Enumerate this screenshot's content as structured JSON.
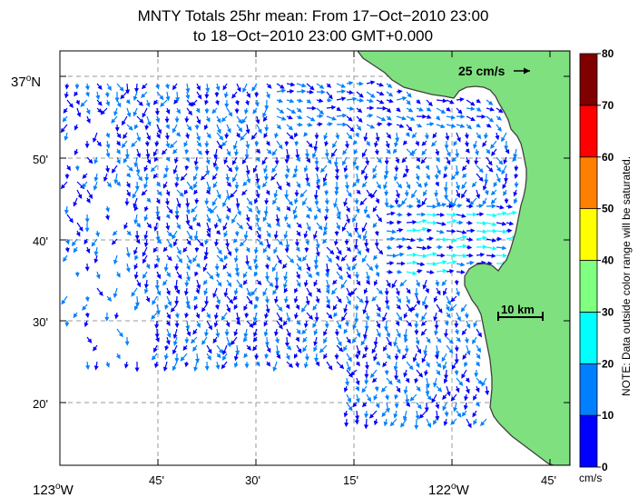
{
  "title": {
    "line1": "MNTY Totals 25hr mean: From 17−Oct−2010 23:00",
    "line2": "to 18−Oct−2010 23:00 GMT+0.000"
  },
  "map": {
    "lat_labels": [
      {
        "main": "37",
        "sup": "o",
        "suffix": "N"
      },
      {
        "main": "50'"
      },
      {
        "main": "40'"
      },
      {
        "main": "30'"
      },
      {
        "main": "20'"
      }
    ],
    "lon_labels": [
      {
        "main": "123",
        "sup": "o",
        "suffix": "W"
      },
      {
        "main": "45'"
      },
      {
        "main": "30'"
      },
      {
        "main": "15'"
      },
      {
        "main": "122",
        "sup": "o",
        "suffix": "W"
      },
      {
        "main": "45'"
      }
    ],
    "velocity_scale_label": "25 cm/s",
    "distance_scale_label": "10 km",
    "land_color": "#7fe07f",
    "vector_colors": [
      "#0000ff",
      "#0080ff",
      "#00ffff"
    ]
  },
  "colorbar": {
    "ticks": [
      "0",
      "10",
      "20",
      "30",
      "40",
      "50",
      "60",
      "70",
      "80"
    ],
    "colors": [
      "#0000ff",
      "#0080ff",
      "#00ffff",
      "#80ff80",
      "#ffff00",
      "#ff8000",
      "#ff0000",
      "#800000"
    ],
    "units": "cm/s",
    "note": "NOTE: Data outside color range will be saturated."
  }
}
